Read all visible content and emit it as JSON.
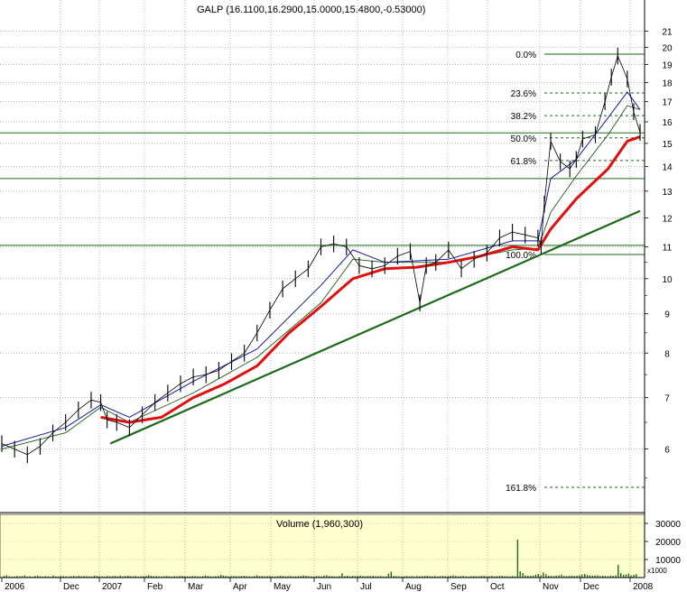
{
  "chart_data": {
    "type": "line",
    "title": "GALP (16.1100,16.2900,15.0000,15.4800,-0.53000)",
    "volume_title": "Volume (1,960,300)",
    "volume_multiplier": "x1000",
    "x_tick_labels": [
      "2006",
      "Dec",
      "2007",
      "Feb",
      "Mar",
      "Apr",
      "May",
      "Jun",
      "Jul",
      "Aug",
      "Sep",
      "Oct",
      "Nov",
      "Dec",
      "2008"
    ],
    "y_tick_labels": [
      "6",
      "7",
      "8",
      "9",
      "10",
      "11",
      "12",
      "13",
      "14",
      "15",
      "16",
      "17",
      "18",
      "19",
      "20",
      "21"
    ],
    "y_scale": "log",
    "ylim": [
      5.0,
      22.5
    ],
    "volume_tick_labels": [
      "10000",
      "20000",
      "30000"
    ],
    "volume_ylim": [
      0,
      35000
    ],
    "fibonacci": [
      {
        "label": "0.0%",
        "value": 19.6
      },
      {
        "label": "23.6%",
        "value": 17.45
      },
      {
        "label": "38.2%",
        "value": 16.3
      },
      {
        "label": "50.0%",
        "value": 15.25
      },
      {
        "label": "61.8%",
        "value": 14.25
      },
      {
        "label": "100.0%",
        "value": 10.75
      },
      {
        "label": "161.8%",
        "value": 5.35
      }
    ],
    "horizontal_lines": [
      15.48,
      13.5,
      11.05
    ],
    "trendline": {
      "start": {
        "x": 0.17,
        "y": 6.1
      },
      "end": {
        "x": 1.0,
        "y": 12.25
      }
    },
    "series": [
      {
        "name": "",
        "style": "price-bars",
        "x": [
          0.0,
          0.02,
          0.04,
          0.06,
          0.08,
          0.1,
          0.12,
          0.14,
          0.155,
          0.165,
          0.18,
          0.2,
          0.22,
          0.24,
          0.26,
          0.28,
          0.3,
          0.32,
          0.34,
          0.36,
          0.38,
          0.4,
          0.42,
          0.44,
          0.46,
          0.48,
          0.5,
          0.52,
          0.54,
          0.56,
          0.58,
          0.6,
          0.62,
          0.64,
          0.655,
          0.665,
          0.68,
          0.7,
          0.72,
          0.74,
          0.76,
          0.78,
          0.8,
          0.82,
          0.84,
          0.845,
          0.85,
          0.86,
          0.875,
          0.89,
          0.9,
          0.91,
          0.93,
          0.945,
          0.955,
          0.965,
          0.98,
          0.99,
          1.0
        ],
        "values": [
          6.1,
          6.0,
          5.9,
          6.05,
          6.3,
          6.5,
          6.75,
          6.95,
          6.9,
          6.55,
          6.5,
          6.4,
          6.65,
          6.9,
          7.1,
          7.3,
          7.45,
          7.5,
          7.6,
          7.8,
          8.0,
          8.5,
          9.1,
          9.7,
          10.0,
          10.3,
          11.0,
          11.1,
          11.0,
          10.4,
          10.3,
          10.4,
          10.7,
          10.85,
          9.3,
          10.4,
          10.5,
          10.9,
          10.3,
          10.6,
          10.8,
          11.3,
          11.5,
          11.4,
          11.3,
          11.05,
          12.5,
          15.1,
          14.2,
          13.9,
          14.3,
          15.2,
          15.4,
          17.0,
          18.3,
          19.5,
          18.2,
          16.5,
          15.5
        ]
      },
      {
        "name": "",
        "style": "short-ma",
        "x": [
          0.0,
          0.1,
          0.155,
          0.2,
          0.3,
          0.4,
          0.5,
          0.55,
          0.6,
          0.7,
          0.8,
          0.84,
          0.86,
          0.9,
          0.95,
          0.98,
          1.0
        ],
        "values": [
          6.05,
          6.4,
          6.85,
          6.6,
          7.35,
          8.1,
          9.8,
          10.9,
          10.5,
          10.6,
          11.2,
          11.2,
          13.5,
          14.3,
          16.2,
          17.5,
          16.6
        ]
      },
      {
        "name": "",
        "style": "long-ma",
        "x": [
          0.0,
          0.1,
          0.155,
          0.2,
          0.3,
          0.4,
          0.5,
          0.55,
          0.6,
          0.7,
          0.8,
          0.84,
          0.86,
          0.9,
          0.95,
          0.98,
          1.0
        ],
        "values": [
          6.0,
          6.3,
          6.8,
          6.5,
          7.1,
          7.9,
          9.3,
          10.6,
          10.5,
          10.5,
          10.9,
          10.95,
          12.2,
          13.6,
          15.4,
          16.8,
          16.6
        ]
      },
      {
        "name": "",
        "style": "red-ma",
        "x": [
          0.155,
          0.2,
          0.25,
          0.3,
          0.35,
          0.4,
          0.45,
          0.5,
          0.55,
          0.6,
          0.65,
          0.7,
          0.75,
          0.8,
          0.84,
          0.86,
          0.9,
          0.95,
          0.98,
          1.0
        ],
        "values": [
          6.6,
          6.5,
          6.6,
          7.0,
          7.3,
          7.7,
          8.5,
          9.2,
          10.0,
          10.3,
          10.35,
          10.5,
          10.7,
          11.0,
          10.9,
          11.6,
          12.7,
          13.9,
          15.1,
          15.3
        ]
      }
    ],
    "volume": [
      180,
      900,
      1300,
      700,
      500,
      600,
      900,
      700,
      800,
      1200,
      600,
      700,
      500,
      900,
      1100,
      700,
      600,
      800,
      700,
      500,
      1200,
      700,
      600,
      900,
      800,
      700,
      600,
      800,
      900,
      700,
      1000,
      700,
      900,
      800,
      700,
      600,
      1100,
      900,
      800,
      700,
      600,
      900,
      700,
      800,
      900,
      700,
      1100,
      700,
      900,
      1000,
      800,
      700,
      900,
      600,
      700,
      800,
      900,
      1400,
      1000,
      800,
      900,
      700,
      600,
      800,
      900,
      700,
      600,
      800,
      700,
      900,
      1000,
      800,
      700,
      600,
      900,
      800,
      700,
      600,
      800,
      1200,
      900,
      700,
      600,
      800,
      900,
      1500,
      1100,
      900,
      700,
      800,
      900,
      800,
      700,
      900,
      1000,
      800,
      700,
      600,
      900,
      1300,
      800,
      900,
      700,
      800,
      900,
      700,
      600,
      800,
      1000,
      900,
      700,
      800,
      900,
      600,
      700,
      800,
      900,
      1200,
      1000,
      800,
      700,
      600,
      900,
      800,
      700,
      1100,
      1300,
      900,
      800,
      700,
      600,
      900,
      2400,
      800,
      1000,
      700,
      900,
      800,
      1000,
      1100,
      900,
      700,
      900,
      800,
      1000,
      700,
      800,
      900,
      600,
      700,
      2200,
      3300,
      900,
      800,
      700,
      600,
      800,
      900,
      700,
      800,
      600,
      900,
      700,
      800,
      900,
      1000,
      800,
      700,
      900,
      600,
      800,
      900,
      700,
      800,
      1000,
      1200,
      900,
      700,
      800,
      900,
      700,
      600,
      800,
      900,
      700,
      800,
      900,
      1000,
      700,
      800,
      900,
      700,
      800,
      900,
      1000,
      700,
      800,
      600,
      900,
      700,
      21000,
      3500,
      2500,
      1200,
      1000,
      900,
      1100,
      1500,
      2000,
      1300,
      2800,
      1800,
      1000,
      900,
      800,
      1000,
      1200,
      1600,
      900,
      800,
      1000,
      1100,
      900,
      1000,
      1300,
      1700,
      2100,
      1500,
      1200,
      1000,
      1100,
      1300,
      900,
      1000,
      900,
      800,
      1100,
      1000,
      1200,
      7000,
      2500,
      1500,
      1800,
      2200,
      1200,
      1500,
      1900
    ],
    "colors": {
      "price_bars": "#000000",
      "short_ma": "#1a1a9e",
      "long_ma": "#1d5c1d",
      "red_ma": "#e01010",
      "trendline": "#1b6b1b",
      "horizontal_lines": "#1b6b1b",
      "fib_lines": "#1b6b1b",
      "volume_bars": "#1b6b1b",
      "volume_background": "#ffffd0",
      "price_background": "#ffffff",
      "grid": "#9a9a9a"
    },
    "grid": true
  }
}
